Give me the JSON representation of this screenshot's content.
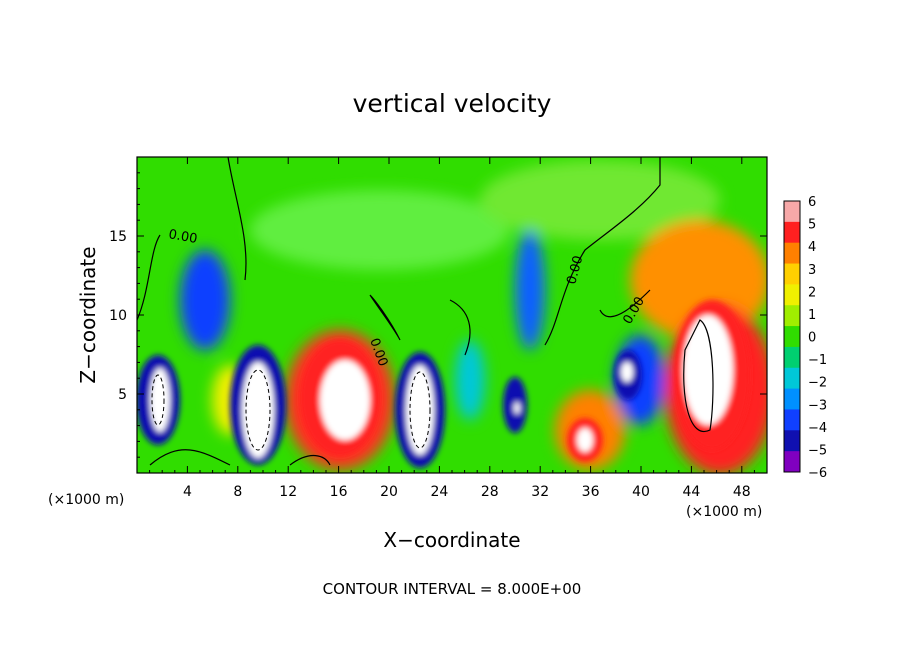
{
  "chart_data": {
    "type": "heatmap",
    "title": "vertical velocity",
    "xlabel": "X−coordinate",
    "ylabel": "Z−coordinate",
    "x_unit_label": "(×1000 m)",
    "x_unit_label_right": "(×1000 m)",
    "xlim": [
      0,
      50
    ],
    "ylim": [
      0,
      20
    ],
    "x_ticks": [
      "4",
      "8",
      "12",
      "16",
      "20",
      "24",
      "28",
      "32",
      "36",
      "40",
      "44",
      "48"
    ],
    "x_tick_values": [
      4,
      8,
      12,
      16,
      20,
      24,
      28,
      32,
      36,
      40,
      44,
      48
    ],
    "y_ticks": [
      "5",
      "10",
      "15"
    ],
    "y_tick_values": [
      5,
      10,
      15
    ],
    "colorbar": {
      "labels": [
        "6",
        "5",
        "4",
        "3",
        "2",
        "1",
        "0",
        "−1",
        "−2",
        "−3",
        "−4",
        "−5",
        "−6"
      ],
      "colors": [
        "#f7a8a8",
        "#ff2020",
        "#ff8000",
        "#ffd000",
        "#f0f000",
        "#a0ee00",
        "#30dd00",
        "#00d070",
        "#00c8d8",
        "#0090ff",
        "#1040ff",
        "#1010b0",
        "#8000c0"
      ]
    },
    "contour_label": "0.00",
    "contour_interval_text": "CONTOUR INTERVAL = 8.000E+00",
    "features": [
      {
        "x": 16.5,
        "z": 4.8,
        "w": 6.0,
        "type": "updraft"
      },
      {
        "x": 44.8,
        "z": 6.0,
        "w": 7.0,
        "type": "updraft"
      },
      {
        "x": 35.5,
        "z": 2.5,
        "w": 5.0,
        "type": "updraft"
      },
      {
        "x": 2.0,
        "z": 5.0,
        "w": -6.0,
        "type": "downdraft"
      },
      {
        "x": 9.5,
        "z": 4.0,
        "w": -6.0,
        "type": "downdraft"
      },
      {
        "x": 22.5,
        "z": 4.5,
        "w": -6.0,
        "type": "downdraft"
      },
      {
        "x": 30.0,
        "z": 4.5,
        "w": -5.0,
        "type": "downdraft"
      },
      {
        "x": 39.0,
        "z": 6.5,
        "w": -6.0,
        "type": "downdraft"
      }
    ]
  }
}
